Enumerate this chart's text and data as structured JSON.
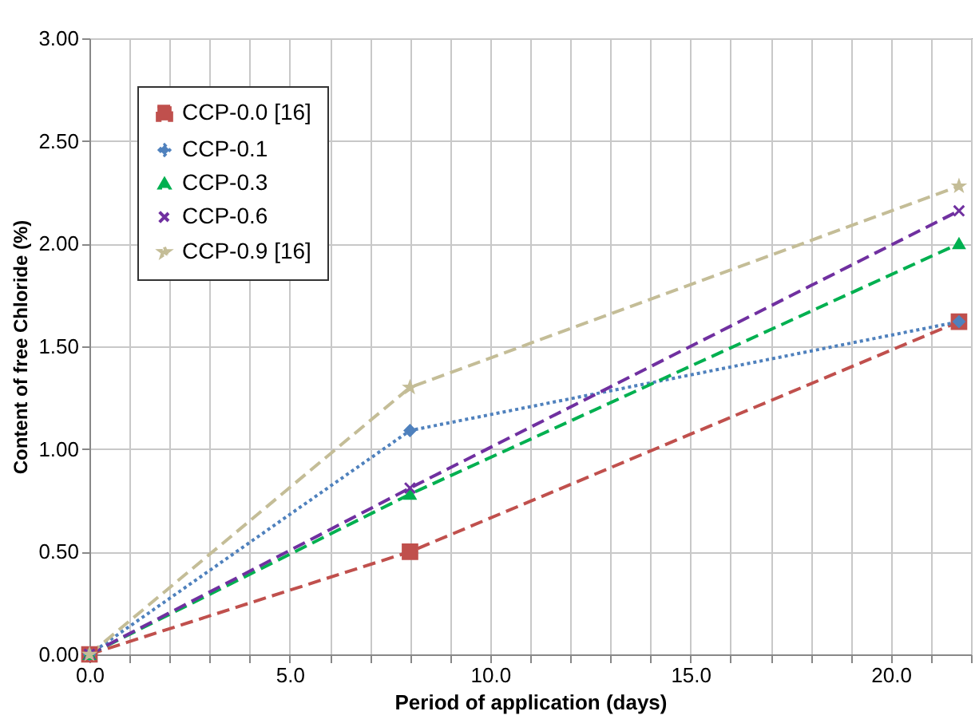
{
  "chart_data": {
    "type": "line",
    "xlabel": "Period of application (days)",
    "ylabel": "Content of free Chloride (%)",
    "x": [
      0,
      8,
      21.7
    ],
    "series": [
      {
        "name": "CCP-0.0 [16]",
        "color": "#c0504d",
        "marker": "square",
        "line_style": "dashed",
        "values": [
          0,
          0.5,
          1.62
        ]
      },
      {
        "name": "CCP-0.1",
        "color": "#4f81bd",
        "marker": "diamond",
        "line_style": "dotted",
        "values": [
          0,
          1.09,
          1.62
        ]
      },
      {
        "name": "CCP-0.3",
        "color": "#00b050",
        "marker": "triangle",
        "line_style": "dashed",
        "values": [
          0,
          0.78,
          2.0
        ]
      },
      {
        "name": "CCP-0.6",
        "color": "#7030a0",
        "marker": "cross",
        "line_style": "dashed",
        "values": [
          0,
          0.81,
          2.16
        ]
      },
      {
        "name": "CCP-0.9 [16]",
        "color": "#c4bd97",
        "marker": "star",
        "line_style": "dashed",
        "values": [
          0,
          1.3,
          2.28
        ]
      }
    ],
    "xlim": [
      0,
      22
    ],
    "xticks": [
      {
        "value": 0,
        "label": "0.0"
      },
      {
        "value": 1,
        "label": null
      },
      {
        "value": 2,
        "label": null
      },
      {
        "value": 3,
        "label": null
      },
      {
        "value": 4,
        "label": null
      },
      {
        "value": 5,
        "label": "5.0"
      },
      {
        "value": 6,
        "label": null
      },
      {
        "value": 7,
        "label": null
      },
      {
        "value": 8,
        "label": null
      },
      {
        "value": 9,
        "label": null
      },
      {
        "value": 10,
        "label": "10.0"
      },
      {
        "value": 11,
        "label": null
      },
      {
        "value": 12,
        "label": null
      },
      {
        "value": 13,
        "label": null
      },
      {
        "value": 14,
        "label": null
      },
      {
        "value": 15,
        "label": "15.0"
      },
      {
        "value": 16,
        "label": null
      },
      {
        "value": 17,
        "label": null
      },
      {
        "value": 18,
        "label": null
      },
      {
        "value": 19,
        "label": null
      },
      {
        "value": 20,
        "label": "20.0"
      },
      {
        "value": 21,
        "label": null
      },
      {
        "value": 22,
        "label": null
      }
    ],
    "ylim": [
      0,
      3
    ],
    "yticks": [
      {
        "value": 0,
        "label": "0.00"
      },
      {
        "value": 0.5,
        "label": "0.50"
      },
      {
        "value": 1,
        "label": "1.00"
      },
      {
        "value": 1.5,
        "label": "1.50"
      },
      {
        "value": 2,
        "label": "2.00"
      },
      {
        "value": 2.5,
        "label": "2.50"
      },
      {
        "value": 3,
        "label": "3.00"
      }
    ],
    "grid": true,
    "legend": "top left"
  }
}
